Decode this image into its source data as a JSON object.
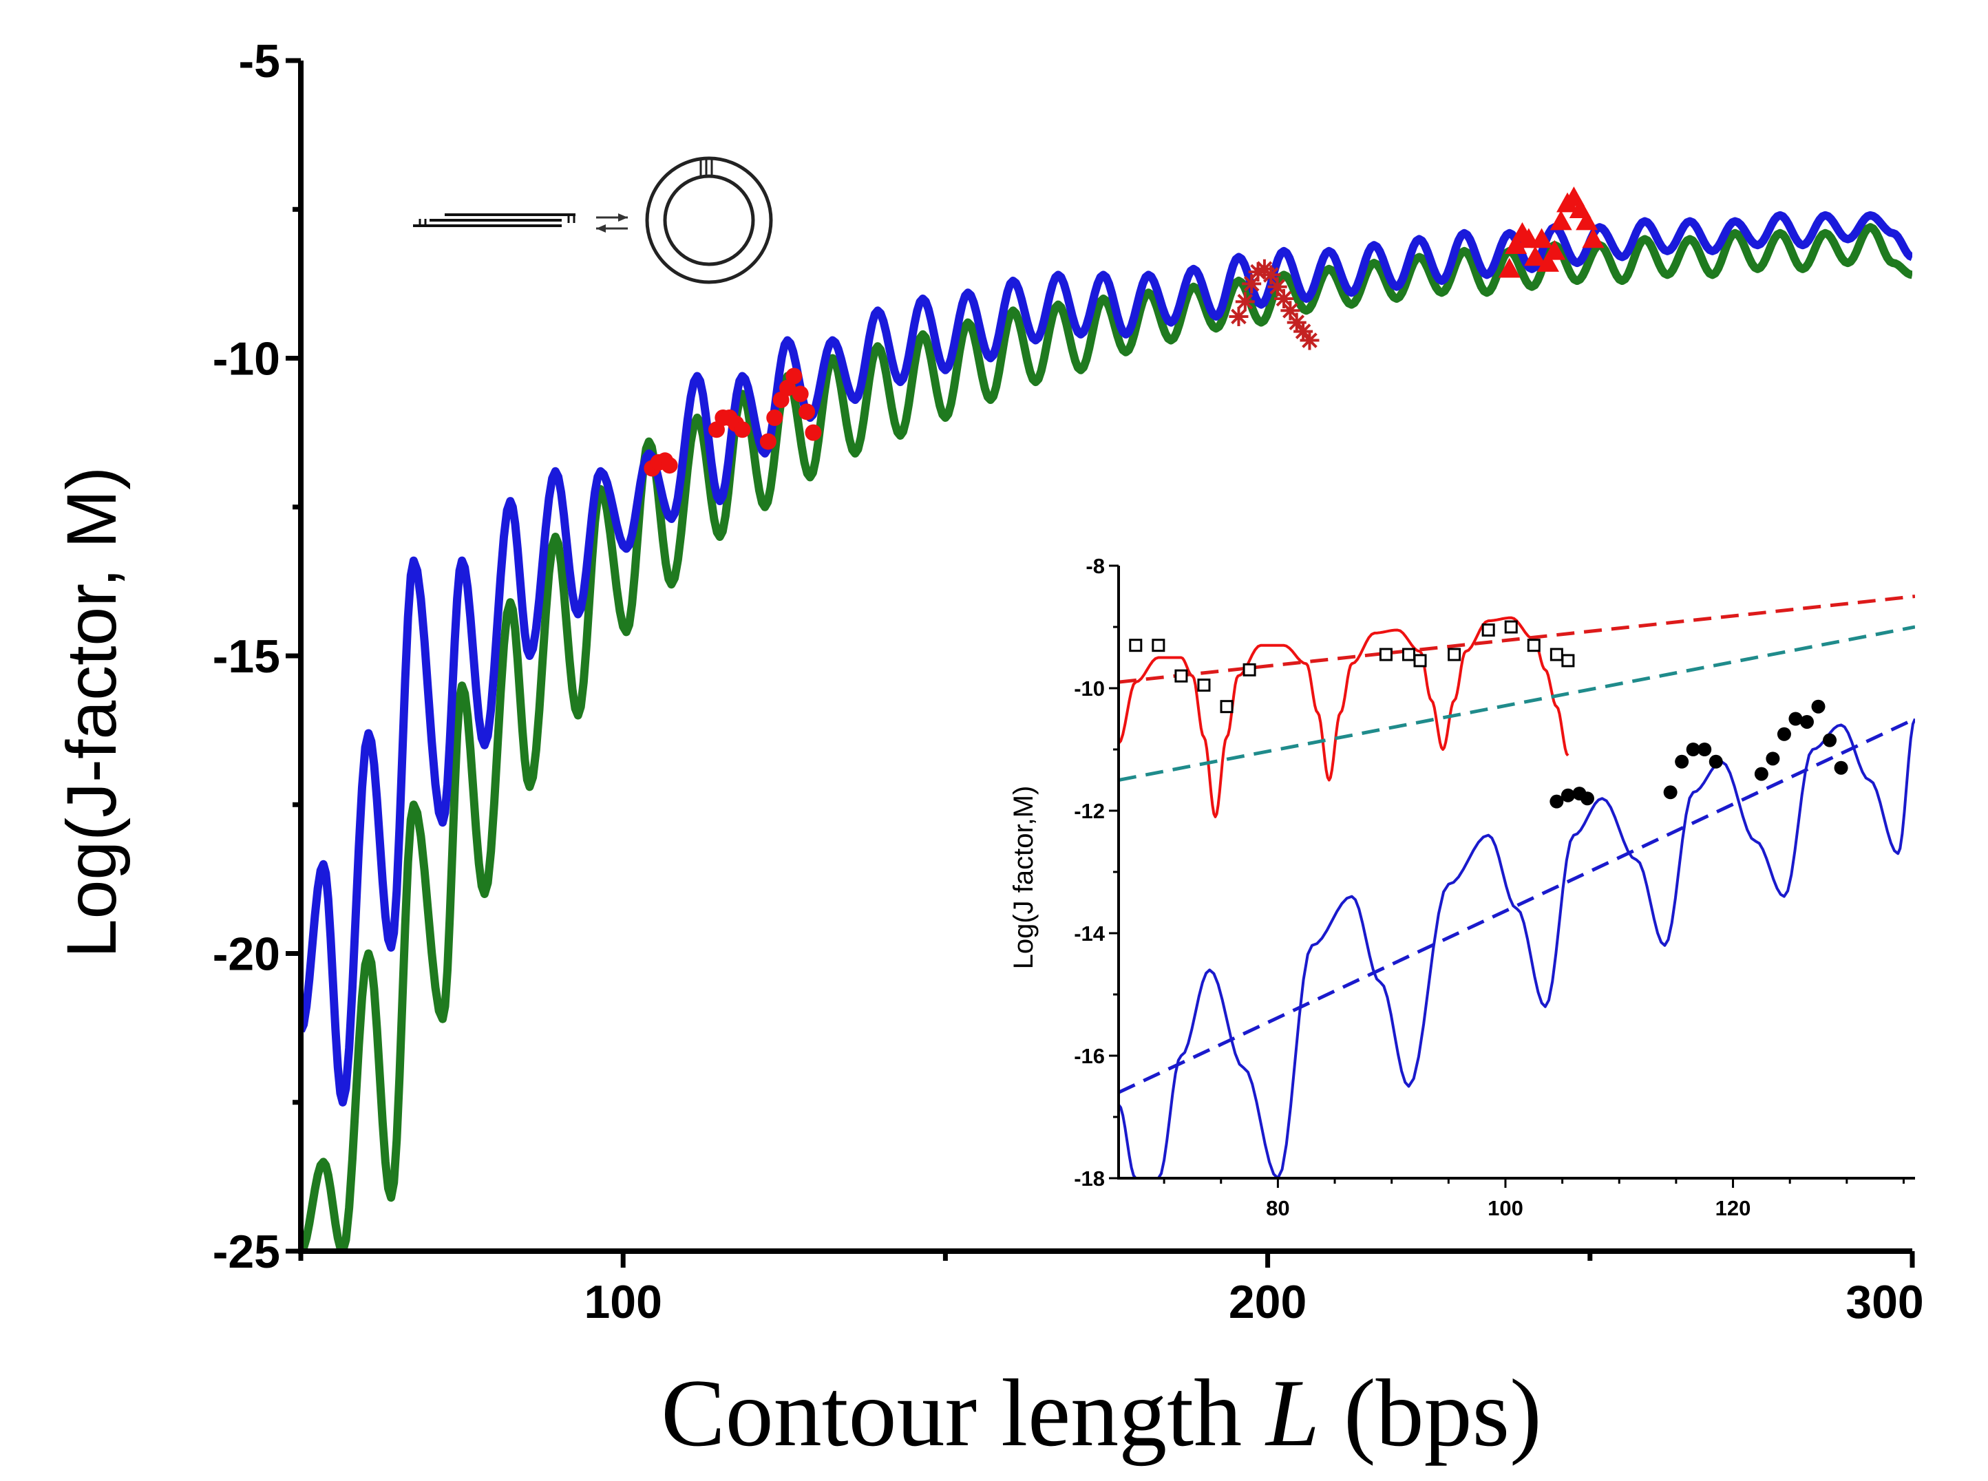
{
  "chart_data": [
    {
      "type": "line",
      "title": "",
      "xlabel": "Contour length",
      "xlabel_symbol": "L",
      "xlabel_unit": "(bps)",
      "ylabel": "Log(J-factor, M)",
      "xlim": [
        50,
        300
      ],
      "ylim": [
        -25,
        -5
      ],
      "xticks": [
        100,
        200,
        300
      ],
      "yticks": [
        -5,
        -10,
        -15,
        -20,
        -25
      ],
      "grid": false,
      "legend": "none",
      "series": [
        {
          "color": "#1a1adb",
          "period": 10.5,
          "x": [
            50,
            53.5,
            56.5,
            60.5,
            64,
            67.5,
            72,
            75,
            78.5,
            82.5,
            85.5,
            89.5,
            93,
            96.5,
            100.5,
            104,
            107.5,
            111.5,
            115,
            118.5,
            122,
            125.5,
            129,
            132.5,
            136,
            139.5,
            143,
            146.5,
            150,
            153.5,
            157,
            160.5,
            164,
            167.5,
            171,
            174.5,
            178,
            181.5,
            185,
            188.5,
            192,
            195.5,
            199,
            202.5,
            206,
            209.5,
            213,
            216.5,
            220,
            223.5,
            227,
            230.5,
            234,
            237.5,
            241,
            244.5,
            248,
            251.5,
            255,
            258.5,
            262,
            265.5,
            269,
            272.5,
            276,
            279.5,
            283,
            286.5,
            290,
            293.5,
            297,
            300
          ],
          "y": [
            -21.3,
            -18.5,
            -22.5,
            -16.3,
            -19.9,
            -13.4,
            -17.8,
            -13.4,
            -16.5,
            -12.4,
            -15.0,
            -11.9,
            -14.3,
            -11.9,
            -13.2,
            -11.6,
            -12.7,
            -10.3,
            -12.4,
            -10.3,
            -11.6,
            -9.7,
            -11.0,
            -9.7,
            -10.7,
            -9.2,
            -10.4,
            -9.0,
            -10.2,
            -8.9,
            -10.0,
            -8.7,
            -9.7,
            -8.6,
            -9.6,
            -8.6,
            -9.6,
            -8.6,
            -9.4,
            -8.5,
            -9.3,
            -8.3,
            -9.1,
            -8.2,
            -9.0,
            -8.2,
            -8.9,
            -8.1,
            -8.8,
            -8.0,
            -8.7,
            -7.9,
            -8.6,
            -7.9,
            -8.5,
            -7.8,
            -8.4,
            -7.8,
            -8.3,
            -7.7,
            -8.2,
            -7.7,
            -8.2,
            -7.7,
            -8.1,
            -7.6,
            -8.1,
            -7.6,
            -8.0,
            -7.6,
            -7.9,
            -8.3
          ]
        },
        {
          "color": "#1f7a1f",
          "period": 10.5,
          "x": [
            50,
            53.5,
            56.5,
            60.5,
            64,
            67.5,
            72,
            75,
            78.5,
            82.5,
            85.5,
            89.5,
            93,
            96.5,
            100.5,
            104,
            107.5,
            111.5,
            115,
            118.5,
            122,
            125.5,
            129,
            132.5,
            136,
            139.5,
            143,
            146.5,
            150,
            153.5,
            157,
            160.5,
            164,
            167.5,
            171,
            174.5,
            178,
            181.5,
            185,
            188.5,
            192,
            195.5,
            199,
            202.5,
            206,
            209.5,
            213,
            216.5,
            220,
            223.5,
            227,
            230.5,
            234,
            237.5,
            241,
            244.5,
            248,
            251.5,
            255,
            258.5,
            262,
            265.5,
            269,
            272.5,
            276,
            279.5,
            283,
            286.5,
            290,
            293.5,
            297,
            300
          ],
          "y": [
            -25.0,
            -23.5,
            -25.0,
            -20.0,
            -24.1,
            -17.5,
            -21.1,
            -15.5,
            -19.0,
            -14.1,
            -17.2,
            -13.0,
            -16.0,
            -12.2,
            -14.6,
            -11.4,
            -13.8,
            -11.0,
            -13.0,
            -10.6,
            -12.5,
            -10.3,
            -12.0,
            -10.0,
            -11.6,
            -9.8,
            -11.3,
            -9.6,
            -11.0,
            -9.4,
            -10.7,
            -9.2,
            -10.4,
            -9.1,
            -10.2,
            -9.0,
            -9.9,
            -8.9,
            -9.7,
            -8.8,
            -9.5,
            -8.7,
            -9.4,
            -8.6,
            -9.2,
            -8.5,
            -9.1,
            -8.4,
            -9.0,
            -8.3,
            -8.9,
            -8.2,
            -8.9,
            -8.2,
            -8.8,
            -8.1,
            -8.7,
            -8.1,
            -8.7,
            -8.0,
            -8.6,
            -8.0,
            -8.6,
            -7.9,
            -8.5,
            -7.9,
            -8.5,
            -7.9,
            -8.4,
            -7.8,
            -8.4,
            -8.6
          ]
        },
        {
          "type": "scatter",
          "marker": "circle",
          "color": "#ee1111",
          "x": [
            104.5,
            105.5,
            106.5,
            107.2,
            114.5,
            115.5,
            116.5,
            117.5,
            118.5,
            122.5,
            123.5,
            124.5,
            125.5,
            126.5,
            127.5,
            128.5,
            129.5
          ],
          "y": [
            -11.85,
            -11.75,
            -11.72,
            -11.8,
            -11.2,
            -11.0,
            -11.0,
            -11.1,
            -11.2,
            -11.4,
            -11.0,
            -10.7,
            -10.5,
            -10.3,
            -10.6,
            -10.9,
            -11.25
          ]
        },
        {
          "type": "scatter",
          "marker": "star",
          "color": "#c42222",
          "x": [
            195.5,
            196.5,
            197.5,
            198.5,
            199.5,
            200.5,
            201.5,
            202.5,
            203.5,
            204.5,
            205.5,
            206.5
          ],
          "y": [
            -9.3,
            -9.05,
            -8.75,
            -8.55,
            -8.5,
            -8.6,
            -8.8,
            -9.0,
            -9.2,
            -9.4,
            -9.55,
            -9.7
          ]
        },
        {
          "type": "scatter",
          "marker": "triangle",
          "color": "#ee1111",
          "x": [
            237.5,
            238.5,
            239.5,
            240.5,
            241.5,
            242.5,
            243.5,
            244.5,
            245.5,
            246.5,
            247.5,
            248.5,
            249.5,
            250.5
          ],
          "y": [
            -8.5,
            -8.1,
            -7.9,
            -8.0,
            -8.3,
            -8.0,
            -8.4,
            -8.2,
            -7.7,
            -7.4,
            -7.3,
            -7.5,
            -7.7,
            -8.0
          ]
        }
      ]
    },
    {
      "type": "line",
      "title": "",
      "xlabel": "",
      "ylabel": "Log(J factor,M)",
      "xlim": [
        66,
        136
      ],
      "ylim": [
        -18,
        -8
      ],
      "xticks": [
        80,
        100,
        120
      ],
      "yticks": [
        -8,
        -10,
        -12,
        -14,
        -16,
        -18
      ],
      "grid": false,
      "legend": "none",
      "series": [
        {
          "style": "solid",
          "color": "#ee1111",
          "period": 10.3,
          "x": [
            66,
            67.5,
            69.5,
            71.5,
            72.5,
            73.5,
            74.5,
            75.5,
            76.5,
            78.5,
            80.5,
            82.5,
            83.5,
            84.5,
            85.5,
            86.5,
            88.5,
            90.5,
            92.5,
            93.5,
            94.5,
            95.5,
            96.5,
            98.5,
            100.5,
            102.5,
            103.5,
            104.5,
            105.5
          ],
          "y": [
            -10.9,
            -9.9,
            -9.5,
            -9.5,
            -9.8,
            -10.8,
            -12.1,
            -10.8,
            -9.8,
            -9.3,
            -9.3,
            -9.6,
            -10.4,
            -11.5,
            -10.4,
            -9.6,
            -9.1,
            -9.05,
            -9.4,
            -10.2,
            -11.0,
            -10.2,
            -9.4,
            -8.9,
            -8.85,
            -9.2,
            -9.7,
            -10.3,
            -11.1
          ]
        },
        {
          "style": "dashed",
          "color": "#dd1a1a",
          "x": [
            66,
            136
          ],
          "y": [
            -9.9,
            -8.5
          ]
        },
        {
          "style": "dashed",
          "color": "#1f8b8b",
          "x": [
            66,
            136
          ],
          "y": [
            -11.5,
            -9.0
          ]
        },
        {
          "style": "dashed",
          "color": "#1a1acc",
          "x": [
            66,
            136
          ],
          "y": [
            -16.6,
            -10.5
          ]
        },
        {
          "style": "solid",
          "color": "#1a1acc",
          "period": 10.5,
          "x": [
            66,
            67.5,
            69.5,
            71.5,
            74,
            77,
            80,
            83,
            86.5,
            89,
            91.5,
            95,
            98.5,
            101,
            103.5,
            106,
            108.5,
            111.5,
            114,
            116.5,
            119,
            122,
            124.5,
            127,
            129.5,
            132,
            134.5,
            136
          ],
          "y": [
            -16.8,
            -18.0,
            -18.0,
            -16.0,
            -14.6,
            -16.2,
            -18.0,
            -14.2,
            -13.4,
            -14.8,
            -16.5,
            -13.2,
            -12.4,
            -13.6,
            -15.2,
            -12.4,
            -11.8,
            -12.8,
            -14.2,
            -11.7,
            -11.2,
            -12.5,
            -13.4,
            -11.0,
            -10.6,
            -11.5,
            -12.7,
            -10.5
          ]
        },
        {
          "type": "scatter",
          "marker": "open-square",
          "color": "#000000",
          "x": [
            67.5,
            69.5,
            71.5,
            73.5,
            75.5,
            77.5,
            89.5,
            91.5,
            92.5,
            95.5,
            98.5,
            100.5,
            102.5,
            104.5,
            105.5
          ],
          "y": [
            -9.3,
            -9.3,
            -9.8,
            -9.95,
            -10.3,
            -9.7,
            -9.45,
            -9.45,
            -9.55,
            -9.45,
            -9.05,
            -9.0,
            -9.3,
            -9.45,
            -9.55
          ]
        },
        {
          "type": "scatter",
          "marker": "filled-circle",
          "color": "#000000",
          "x": [
            104.5,
            105.5,
            106.5,
            107.2,
            114.5,
            115.5,
            116.5,
            117.5,
            118.5,
            122.5,
            123.5,
            124.5,
            125.5,
            126.5,
            127.5,
            128.5,
            129.5
          ],
          "y": [
            -11.85,
            -11.75,
            -11.72,
            -11.8,
            -11.7,
            -11.2,
            -11.0,
            -11.0,
            -11.2,
            -11.4,
            -11.15,
            -10.75,
            -10.5,
            -10.55,
            -10.3,
            -10.85,
            -11.3
          ]
        }
      ]
    }
  ]
}
